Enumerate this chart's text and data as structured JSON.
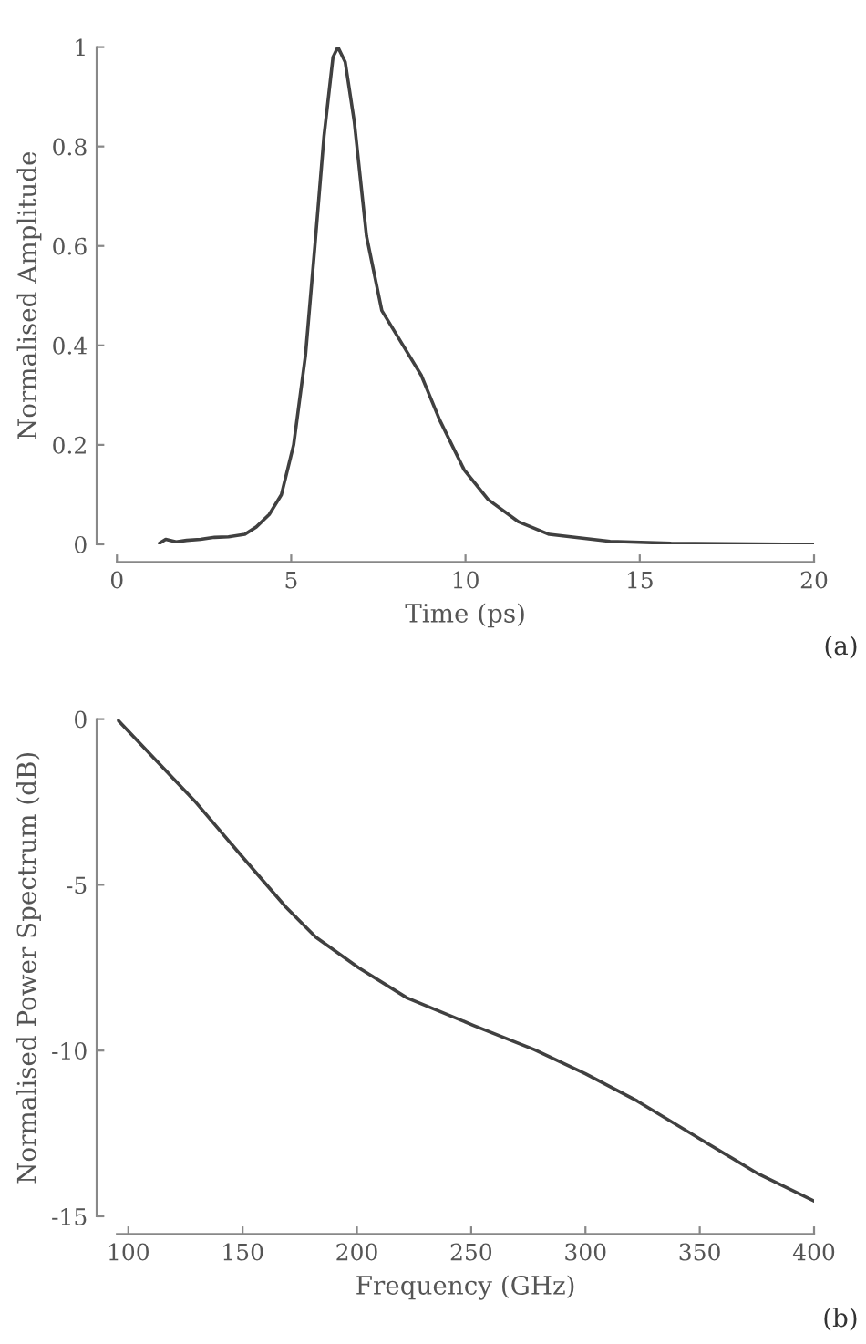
{
  "chart_data": [
    {
      "type": "line",
      "xlabel": "Time (ps)",
      "ylabel": "Normalised Amplitude",
      "annotations": [
        "(a)"
      ],
      "series": [
        {
          "color": "#404040",
          "x": [
            1.22,
            1.4,
            1.7,
            2.0,
            2.4,
            2.8,
            3.2,
            3.67,
            4.0,
            4.37,
            4.72,
            5.07,
            5.41,
            5.68,
            5.94,
            6.2,
            6.34,
            6.55,
            6.81,
            7.16,
            7.6,
            8.21,
            8.73,
            9.26,
            9.96,
            10.65,
            11.53,
            12.4,
            14.15,
            15.9,
            20
          ],
          "values": [
            0.002,
            0.01,
            0.005,
            0.008,
            0.01,
            0.014,
            0.015,
            0.02,
            0.035,
            0.06,
            0.1,
            0.2,
            0.38,
            0.6,
            0.82,
            0.98,
            1.0,
            0.97,
            0.85,
            0.62,
            0.47,
            0.4,
            0.34,
            0.25,
            0.15,
            0.09,
            0.045,
            0.02,
            0.006,
            0.002,
            0.0
          ]
        }
      ],
      "xlim": [
        0,
        20
      ],
      "ylim": [
        0,
        1
      ],
      "xticks": [
        0,
        5,
        10,
        15,
        20
      ],
      "yticks": [
        0,
        0.2,
        0.4,
        0.6,
        0.8,
        1
      ],
      "grid": false,
      "legend": false,
      "marker": "none",
      "line_style": "solid"
    },
    {
      "type": "line",
      "xlabel": "Frequency (GHz)",
      "ylabel": "Normalised Power Spectrum (dB)",
      "annotations": [
        "(b)"
      ],
      "series": [
        {
          "color": "#404040",
          "x": [
            95,
            129,
            150.4,
            168.9,
            182,
            200.7,
            221.9,
            251,
            277.6,
            300,
            322.6,
            349,
            375.6,
            400
          ],
          "values": [
            0,
            -2.47,
            -4.2,
            -5.67,
            -6.58,
            -7.5,
            -8.41,
            -9.24,
            -9.97,
            -10.7,
            -11.52,
            -12.62,
            -13.72,
            -14.54
          ]
        }
      ],
      "xlim": [
        95,
        400
      ],
      "ylim": [
        -15,
        0
      ],
      "xticks": [
        100,
        150,
        200,
        250,
        300,
        350,
        400
      ],
      "yticks": [
        0,
        -5,
        -10,
        -15
      ],
      "grid": false,
      "legend": false,
      "marker": "none",
      "line_style": "solid"
    }
  ]
}
